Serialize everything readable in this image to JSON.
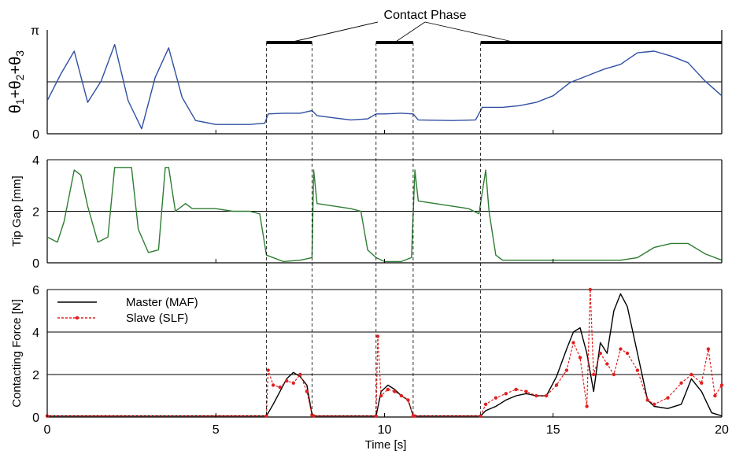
{
  "annotation": {
    "label": "Contact Phase"
  },
  "x_axis": {
    "label": "Time [s]",
    "ticks": [
      "0",
      "5",
      "10",
      "15",
      "20"
    ],
    "tick_values": [
      0,
      5,
      10,
      15,
      20
    ],
    "range": [
      0,
      20
    ]
  },
  "contact_phases": [
    [
      6.5,
      7.85
    ],
    [
      9.75,
      10.85
    ],
    [
      12.85,
      20.0
    ]
  ],
  "colors": {
    "theta": "#2f4fa3",
    "gap": "#2e7d32",
    "master": "#000000",
    "slave": "#e02020",
    "contact_bar": "#000000",
    "grid": "#000000"
  },
  "chart_data": [
    {
      "type": "line",
      "ylabel": "θ1+θ2+θ3",
      "ylim": [
        0,
        3.1416
      ],
      "yticks": [
        "0",
        "π"
      ],
      "ytick_values": [
        0,
        3.1416
      ],
      "grid_values": [
        1.5708
      ],
      "series": [
        {
          "x": [
            0,
            0.4,
            0.8,
            1.2,
            1.6,
            2.0,
            2.4,
            2.8,
            3.2,
            3.6,
            4.0,
            4.4,
            5.0,
            6.0,
            6.45,
            6.55,
            7.0,
            7.5,
            7.85,
            8.0,
            8.5,
            9.0,
            9.5,
            9.75,
            10.0,
            10.5,
            10.85,
            11.0,
            12.0,
            12.7,
            12.9,
            13.5,
            14.0,
            14.5,
            15.0,
            15.5,
            16.0,
            16.5,
            17.0,
            17.5,
            18.0,
            18.5,
            19.0,
            19.5,
            20.0
          ],
          "y": [
            1.0,
            1.8,
            2.5,
            0.95,
            1.6,
            2.7,
            1.0,
            0.15,
            1.7,
            2.6,
            1.1,
            0.4,
            0.28,
            0.28,
            0.32,
            0.6,
            0.62,
            0.62,
            0.7,
            0.55,
            0.48,
            0.42,
            0.45,
            0.6,
            0.6,
            0.62,
            0.6,
            0.42,
            0.4,
            0.42,
            0.8,
            0.8,
            0.85,
            0.95,
            1.15,
            1.55,
            1.75,
            1.95,
            2.1,
            2.45,
            2.5,
            2.35,
            2.15,
            1.6,
            1.15
          ]
        }
      ]
    },
    {
      "type": "line",
      "ylabel": "Tip Gap [mm]",
      "ylim": [
        0,
        4
      ],
      "yticks": [
        "0",
        "2",
        "4"
      ],
      "ytick_values": [
        0,
        2,
        4
      ],
      "grid_values": [
        2,
        4
      ],
      "series": [
        {
          "x": [
            0,
            0.3,
            0.5,
            0.8,
            1.0,
            1.2,
            1.5,
            1.8,
            2.0,
            2.1,
            2.5,
            2.7,
            3.0,
            3.3,
            3.5,
            3.6,
            3.8,
            4.1,
            4.3,
            4.5,
            5.0,
            5.5,
            6.0,
            6.3,
            6.5,
            7.0,
            7.5,
            7.85,
            7.9,
            8.0,
            8.5,
            9.0,
            9.3,
            9.5,
            9.75,
            10.0,
            10.5,
            10.8,
            10.9,
            11.0,
            11.5,
            12.0,
            12.5,
            12.8,
            13.0,
            13.1,
            13.3,
            13.5,
            14.0,
            14.5,
            15.0,
            15.5,
            16.0,
            16.5,
            17.0,
            17.5,
            18.0,
            18.5,
            19.0,
            19.5,
            20.0
          ],
          "y": [
            1.0,
            0.8,
            1.6,
            3.6,
            3.4,
            2.2,
            0.8,
            1.0,
            3.7,
            3.7,
            3.7,
            1.3,
            0.4,
            0.5,
            3.7,
            3.7,
            2.0,
            2.3,
            2.1,
            2.1,
            2.1,
            2.0,
            2.0,
            1.9,
            0.3,
            0.05,
            0.1,
            0.2,
            3.6,
            2.3,
            2.2,
            2.1,
            2.0,
            0.5,
            0.2,
            0.05,
            0.05,
            0.2,
            3.6,
            2.4,
            2.3,
            2.2,
            2.1,
            1.9,
            3.6,
            2.0,
            0.3,
            0.1,
            0.1,
            0.1,
            0.1,
            0.1,
            0.1,
            0.1,
            0.1,
            0.2,
            0.6,
            0.75,
            0.75,
            0.35,
            0.1
          ]
        }
      ]
    },
    {
      "type": "line",
      "ylabel": "Contacting Force [N]",
      "ylim": [
        0,
        6
      ],
      "yticks": [
        "0",
        "2",
        "4",
        "6"
      ],
      "ytick_values": [
        0,
        2,
        4,
        6
      ],
      "grid_values": [
        2,
        4,
        6
      ],
      "legend": "top-left",
      "series": [
        {
          "name": "Master (MAF)",
          "x": [
            0,
            6.5,
            6.7,
            6.9,
            7.1,
            7.3,
            7.5,
            7.7,
            7.85,
            7.9,
            9.75,
            9.9,
            10.1,
            10.3,
            10.5,
            10.7,
            10.85,
            10.9,
            12.85,
            13.0,
            13.3,
            13.6,
            13.9,
            14.2,
            14.5,
            14.8,
            15.1,
            15.4,
            15.6,
            15.8,
            16.0,
            16.2,
            16.4,
            16.6,
            16.8,
            17.0,
            17.2,
            17.5,
            17.8,
            18.0,
            18.4,
            18.8,
            19.1,
            19.4,
            19.7,
            20.0
          ],
          "y": [
            0.05,
            0.05,
            0.6,
            1.2,
            1.8,
            2.1,
            1.9,
            1.5,
            0.1,
            0.05,
            0.05,
            1.2,
            1.5,
            1.3,
            1.0,
            0.8,
            0.05,
            0.05,
            0.05,
            0.3,
            0.5,
            0.8,
            1.0,
            1.1,
            1.0,
            1.0,
            1.9,
            3.2,
            4.0,
            4.2,
            3.0,
            1.2,
            3.5,
            3.0,
            5.0,
            5.8,
            5.2,
            3.0,
            0.8,
            0.5,
            0.4,
            0.6,
            1.8,
            1.2,
            0.2,
            0.05
          ]
        },
        {
          "name": "Slave (SLF)",
          "x": [
            0,
            6.5,
            6.55,
            6.7,
            6.9,
            7.1,
            7.3,
            7.5,
            7.7,
            7.85,
            7.9,
            9.75,
            9.8,
            9.9,
            10.1,
            10.3,
            10.5,
            10.7,
            10.85,
            10.9,
            12.85,
            13.0,
            13.3,
            13.6,
            13.9,
            14.2,
            14.5,
            14.8,
            15.1,
            15.4,
            15.6,
            15.8,
            16.0,
            16.1,
            16.2,
            16.4,
            16.6,
            16.8,
            17.0,
            17.2,
            17.5,
            17.8,
            18.0,
            18.4,
            18.8,
            19.1,
            19.4,
            19.6,
            19.8,
            20.0
          ],
          "y": [
            0.05,
            0.05,
            2.2,
            1.5,
            1.4,
            1.7,
            1.6,
            2.0,
            1.2,
            0.1,
            0.05,
            0.05,
            3.8,
            1.0,
            1.3,
            1.2,
            1.0,
            0.8,
            0.05,
            0.05,
            0.05,
            0.6,
            0.9,
            1.1,
            1.3,
            1.2,
            1.0,
            1.0,
            1.5,
            2.2,
            3.5,
            2.8,
            0.5,
            6.0,
            2.0,
            3.0,
            2.5,
            2.0,
            3.2,
            3.0,
            2.2,
            0.8,
            0.6,
            0.9,
            1.6,
            2.0,
            1.6,
            3.2,
            1.0,
            1.5
          ]
        }
      ]
    }
  ]
}
